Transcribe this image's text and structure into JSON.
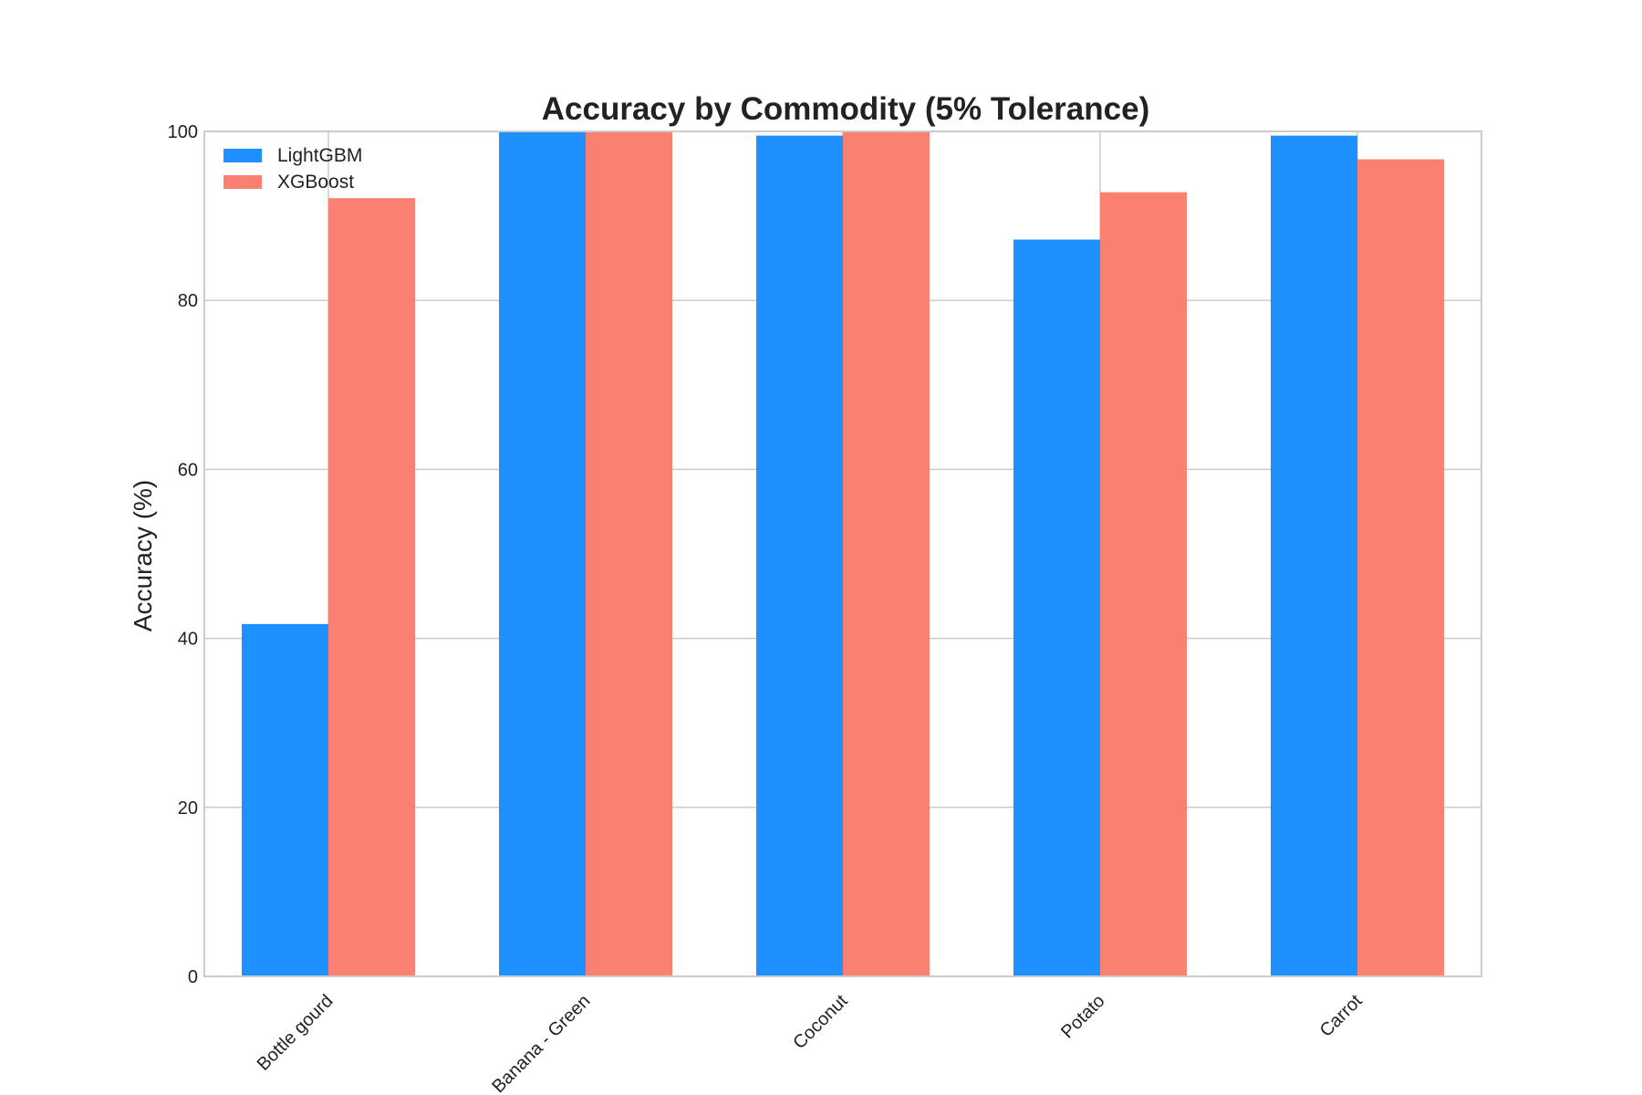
{
  "chart_data": {
    "type": "bar",
    "title": "Accuracy by Commodity (5% Tolerance)",
    "xlabel": "",
    "ylabel": "Accuracy (%)",
    "categories": [
      "Bottle gourd",
      "Banana - Green",
      "Coconut",
      "Potato",
      "Carrot"
    ],
    "series": [
      {
        "name": "LightGBM",
        "color": "#1e90ff",
        "values": [
          41.7,
          100.0,
          99.5,
          87.2,
          99.5
        ]
      },
      {
        "name": "XGBoost",
        "color": "#fa8072",
        "values": [
          92.1,
          100.0,
          100.0,
          92.8,
          96.7
        ]
      }
    ],
    "ylim": [
      0,
      100
    ],
    "yticks": [
      0,
      20,
      40,
      60,
      80,
      100
    ],
    "grid": true,
    "legend_position": "top-left"
  }
}
